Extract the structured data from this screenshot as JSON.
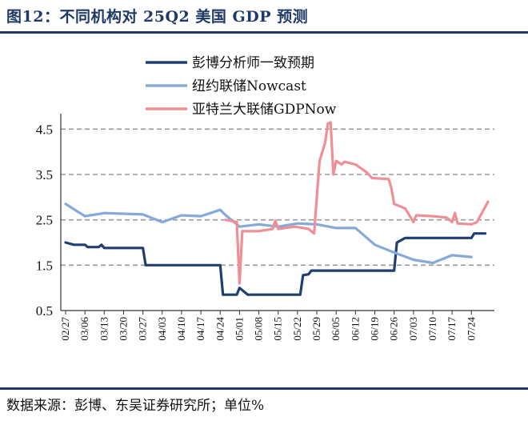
{
  "header": {
    "title": "图12：不同机构对 25Q2 美国 GDP 预测"
  },
  "footer": {
    "source": "数据来源：彭博、东吴证券研究所；单位%"
  },
  "chart_data": {
    "type": "line",
    "title": "",
    "xlabel": "",
    "ylabel": "",
    "x_ticks": [
      "02/27",
      "03/06",
      "03/13",
      "03/20",
      "03/27",
      "04/03",
      "04/10",
      "04/17",
      "04/24",
      "05/01",
      "05/08",
      "05/15",
      "05/22",
      "05/29",
      "06/05",
      "06/12",
      "06/19",
      "06/26",
      "07/03",
      "07/10",
      "07/17",
      "07/24"
    ],
    "y_ticks": [
      "0.5",
      "1.5",
      "2.5",
      "3.5",
      "4.5"
    ],
    "ylim": [
      0.5,
      4.7
    ],
    "grid": "horizontal dashed",
    "legend_position": "top-center",
    "series": [
      {
        "name": "彭博分析师一致预期",
        "color": "#1f3f73",
        "points": [
          [
            "02/27",
            2.0
          ],
          [
            "03/02",
            1.95
          ],
          [
            "03/06",
            1.95
          ],
          [
            "03/07",
            1.9
          ],
          [
            "03/11",
            1.9
          ],
          [
            "03/12",
            1.95
          ],
          [
            "03/13",
            1.88
          ],
          [
            "03/27",
            1.88
          ],
          [
            "03/28",
            1.5
          ],
          [
            "04/24",
            1.5
          ],
          [
            "04/25",
            0.85
          ],
          [
            "04/30",
            0.85
          ],
          [
            "05/01",
            1.0
          ],
          [
            "05/04",
            0.85
          ],
          [
            "05/23",
            0.85
          ],
          [
            "05/24",
            1.28
          ],
          [
            "05/26",
            1.3
          ],
          [
            "05/27",
            1.38
          ],
          [
            "06/26",
            1.38
          ],
          [
            "06/27",
            2.0
          ],
          [
            "06/30",
            2.1
          ],
          [
            "07/24",
            2.1
          ],
          [
            "07/25",
            2.2
          ],
          [
            "07/29",
            2.2
          ]
        ]
      },
      {
        "name": "纽约联储Nowcast",
        "color": "#86a9dc",
        "points": [
          [
            "02/27",
            2.85
          ],
          [
            "03/06",
            2.58
          ],
          [
            "03/13",
            2.65
          ],
          [
            "03/27",
            2.62
          ],
          [
            "04/03",
            2.45
          ],
          [
            "04/10",
            2.6
          ],
          [
            "04/17",
            2.58
          ],
          [
            "04/24",
            2.72
          ],
          [
            "04/26",
            2.6
          ],
          [
            "05/01",
            2.35
          ],
          [
            "05/08",
            2.4
          ],
          [
            "05/15",
            2.35
          ],
          [
            "05/22",
            2.42
          ],
          [
            "05/29",
            2.4
          ],
          [
            "06/05",
            2.32
          ],
          [
            "06/12",
            2.32
          ],
          [
            "06/19",
            1.95
          ],
          [
            "06/26",
            1.78
          ],
          [
            "07/03",
            1.62
          ],
          [
            "07/10",
            1.55
          ],
          [
            "07/17",
            1.72
          ],
          [
            "07/24",
            1.68
          ]
        ]
      },
      {
        "name": "亚特兰大联储GDPNow",
        "color": "#ef8f95",
        "points": [
          [
            "04/26",
            2.5
          ],
          [
            "04/30",
            2.45
          ],
          [
            "05/01",
            1.1
          ],
          [
            "05/02",
            2.25
          ],
          [
            "05/08",
            2.25
          ],
          [
            "05/13",
            2.3
          ],
          [
            "05/14",
            2.48
          ],
          [
            "05/15",
            2.3
          ],
          [
            "05/21",
            2.35
          ],
          [
            "05/26",
            2.3
          ],
          [
            "05/28",
            2.2
          ],
          [
            "05/29",
            3.0
          ],
          [
            "05/30",
            3.8
          ],
          [
            "06/01",
            4.2
          ],
          [
            "06/02",
            4.62
          ],
          [
            "06/03",
            4.65
          ],
          [
            "06/04",
            3.5
          ],
          [
            "06/05",
            3.8
          ],
          [
            "06/07",
            3.72
          ],
          [
            "06/08",
            3.78
          ],
          [
            "06/12",
            3.72
          ],
          [
            "06/16",
            3.55
          ],
          [
            "06/18",
            3.42
          ],
          [
            "06/24",
            3.4
          ],
          [
            "06/25",
            3.2
          ],
          [
            "06/26",
            2.85
          ],
          [
            "06/30",
            2.75
          ],
          [
            "07/02",
            2.55
          ],
          [
            "07/03",
            2.45
          ],
          [
            "07/04",
            2.6
          ],
          [
            "07/10",
            2.58
          ],
          [
            "07/15",
            2.55
          ],
          [
            "07/17",
            2.45
          ],
          [
            "07/18",
            2.65
          ],
          [
            "07/19",
            2.42
          ],
          [
            "07/24",
            2.4
          ],
          [
            "07/26",
            2.45
          ],
          [
            "07/30",
            2.9
          ]
        ]
      }
    ]
  }
}
